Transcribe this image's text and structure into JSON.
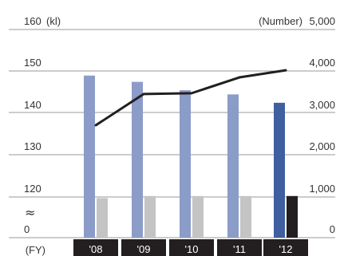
{
  "chart_data": {
    "type": "bar",
    "categories": [
      "'08",
      "'09",
      "'10",
      "'11",
      "'12"
    ],
    "x_axis_prefix": "(FY)",
    "left_axis": {
      "label": "(kl)",
      "ticks": [
        "0",
        "120",
        "130",
        "140",
        "150",
        "160"
      ],
      "tick_values": [
        0,
        120,
        130,
        140,
        150,
        160
      ],
      "break_symbol": "≈",
      "break_between": [
        0,
        120
      ]
    },
    "right_axis": {
      "label": "(Number)",
      "ticks": [
        "0",
        "1,000",
        "2,000",
        "3,000",
        "4,000",
        "5,000"
      ],
      "tick_values": [
        0,
        1000,
        2000,
        3000,
        4000,
        5000
      ],
      "ylim": [
        0,
        5000
      ]
    },
    "series": [
      {
        "axis": "left",
        "kind": "bar",
        "values": [
          149,
          147.5,
          145.5,
          144.5,
          142.5
        ],
        "colors": [
          "#8c9cc8",
          "#8c9cc8",
          "#8c9cc8",
          "#8c9cc8",
          "#3f5f9f"
        ]
      },
      {
        "axis": "right",
        "kind": "bar",
        "values": [
          950,
          1000,
          1000,
          1000,
          1000
        ],
        "colors": [
          "#c4c4c4",
          "#c4c4c4",
          "#c4c4c4",
          "#c4c4c4",
          "#231f20"
        ]
      },
      {
        "axis": "right",
        "kind": "line",
        "values": [
          2700,
          3450,
          3470,
          3850,
          4020
        ],
        "color": "#231f20"
      }
    ],
    "grid": true,
    "category_label_background": "#231f20"
  }
}
